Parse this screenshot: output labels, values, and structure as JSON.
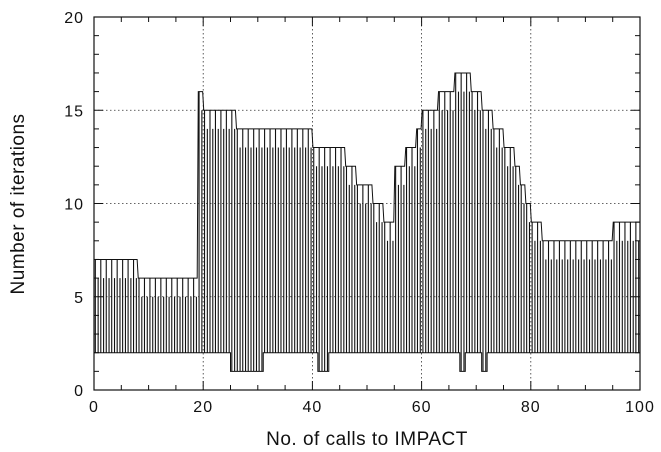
{
  "chart_data": {
    "type": "line",
    "title": "",
    "xlabel": "No. of calls to IMPACT",
    "ylabel": "Number of iterations",
    "xlim": [
      0,
      100
    ],
    "ylim": [
      0,
      20
    ],
    "x_ticks": [
      "0",
      "20",
      "40",
      "60",
      "80",
      "100"
    ],
    "y_ticks": [
      "0",
      "5",
      "10",
      "15",
      "20"
    ],
    "grid": "dotted at major ticks",
    "series": [
      {
        "x": [
          0.5,
          1.5,
          2.5,
          3.5,
          4.5,
          5.5,
          6.5,
          7.5,
          8.5,
          9.5,
          10.5,
          11.5,
          12.5,
          13.5,
          14.5,
          15.5,
          16.5,
          17.5,
          18.5,
          19.5,
          20.5,
          21.5,
          22.5,
          23.5,
          24.5,
          25.5,
          26.5,
          27.5,
          28.5,
          29.5,
          30.5,
          31.5,
          32.5,
          33.5,
          34.5,
          35.5,
          36.5,
          37.5,
          38.5,
          39.5,
          40.5,
          41.5,
          42.5,
          43.5,
          44.5,
          45.5,
          46.5,
          47.5,
          48.5,
          49.5,
          50.5,
          51.5,
          52.5,
          53.5,
          54.5,
          55.5,
          56.5,
          57.5,
          58.5,
          59.5,
          60.5,
          61.5,
          62.5,
          63.5,
          64.5,
          65.5,
          66.5,
          67.5,
          68.5,
          69.5,
          70.5,
          71.5,
          72.5,
          73.5,
          74.5,
          75.5,
          76.5,
          77.5,
          78.5,
          79.5,
          80.5,
          81.5,
          82.5,
          83.5,
          84.5,
          85.5,
          86.5,
          87.5,
          88.5,
          89.5,
          90.5,
          91.5,
          92.5,
          93.5,
          94.5,
          95.5,
          96.5,
          97.5,
          98.5,
          99.5
        ],
        "max": [
          7,
          7,
          7,
          7,
          7,
          7,
          7,
          7,
          6,
          6,
          6,
          6,
          6,
          6,
          6,
          6,
          6,
          6,
          6,
          16,
          15,
          15,
          15,
          15,
          15,
          15,
          14,
          14,
          14,
          14,
          14,
          14,
          14,
          14,
          14,
          14,
          14,
          14,
          14,
          14,
          13,
          13,
          13,
          13,
          13,
          13,
          12,
          12,
          11,
          11,
          11,
          10,
          10,
          9,
          9,
          12,
          12,
          13,
          13,
          14,
          15,
          15,
          15,
          16,
          16,
          16,
          17,
          17,
          17,
          16,
          16,
          15,
          15,
          14,
          14,
          13,
          13,
          12,
          11,
          10,
          9,
          9,
          8,
          8,
          8,
          8,
          8,
          8,
          8,
          8,
          8,
          8,
          8,
          8,
          8,
          9,
          9,
          9,
          9,
          9
        ],
        "min": [
          2,
          2,
          2,
          2,
          2,
          2,
          2,
          2,
          2,
          2,
          2,
          2,
          2,
          2,
          2,
          2,
          2,
          2,
          2,
          2,
          2,
          2,
          2,
          2,
          2,
          1,
          1,
          1,
          1,
          1,
          1,
          2,
          2,
          2,
          2,
          2,
          2,
          2,
          2,
          2,
          2,
          1,
          1,
          2,
          2,
          2,
          2,
          2,
          2,
          2,
          2,
          2,
          2,
          2,
          2,
          2,
          2,
          2,
          2,
          2,
          2,
          2,
          2,
          2,
          2,
          2,
          2,
          1,
          2,
          2,
          2,
          1,
          2,
          2,
          2,
          2,
          2,
          2,
          2,
          2,
          2,
          2,
          2,
          2,
          2,
          2,
          2,
          2,
          2,
          2,
          2,
          2,
          2,
          2,
          2,
          2,
          2,
          2,
          2,
          2
        ]
      }
    ]
  }
}
